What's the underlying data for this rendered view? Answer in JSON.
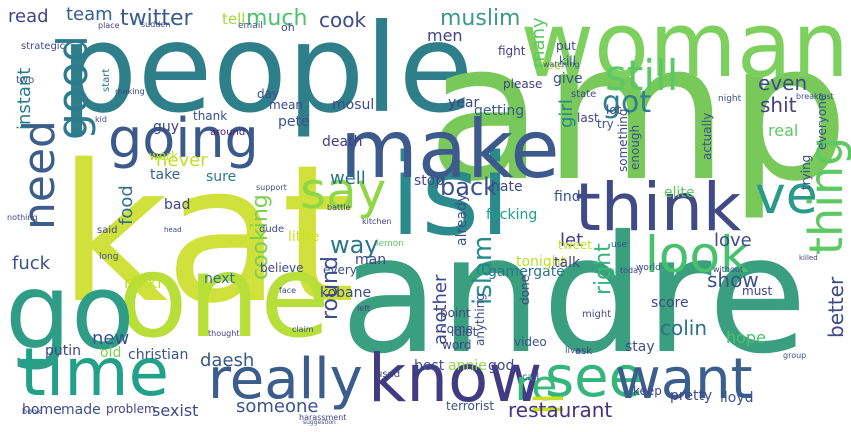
{
  "words": [
    {
      "text": "people",
      "color": "#2e7f8a"
    },
    {
      "text": "kat",
      "color": "#cfe13a"
    },
    {
      "text": "amp",
      "color": "#78c95a"
    },
    {
      "text": "andre",
      "color": "#3a9f7e"
    },
    {
      "text": "woman",
      "color": "#7dd05e"
    },
    {
      "text": "one",
      "color": "#b8de3a"
    },
    {
      "text": "isi",
      "color": "#2a8a8c"
    },
    {
      "text": "make",
      "color": "#3d5a8c"
    },
    {
      "text": "go",
      "color": "#2f9c86"
    },
    {
      "text": "time",
      "color": "#21a187"
    },
    {
      "text": "know",
      "color": "#433a84"
    },
    {
      "text": "think",
      "color": "#404a87"
    },
    {
      "text": "see",
      "color": "#34b57c"
    },
    {
      "text": "really",
      "color": "#3b5d8c"
    },
    {
      "text": "want",
      "color": "#3a5f8c"
    },
    {
      "text": "going",
      "color": "#3b5a8b"
    },
    {
      "text": "look",
      "color": "#47c16e"
    },
    {
      "text": "still",
      "color": "#5ac864"
    },
    {
      "text": "say",
      "color": "#8fd744"
    },
    {
      "text": "re",
      "color": "#39b97a"
    },
    {
      "text": "ve",
      "color": "#2a9b8a"
    },
    {
      "text": "thing",
      "color": "#5ec962"
    },
    {
      "text": "need",
      "color": "#3b5e8c"
    },
    {
      "text": "good",
      "color": "#2d7b8e"
    },
    {
      "text": "ll",
      "color": "#c8e020"
    },
    {
      "text": "got",
      "color": "#2c7f8e"
    },
    {
      "text": "twitter",
      "color": "#3b5b8b"
    },
    {
      "text": "much",
      "color": "#4cc26c"
    },
    {
      "text": "muslim",
      "color": "#3a9a88"
    },
    {
      "text": "cook",
      "color": "#3e4a89"
    },
    {
      "text": "team",
      "color": "#355f8d"
    },
    {
      "text": "read",
      "color": "#3f4688"
    },
    {
      "text": "tell",
      "color": "#a0da39"
    },
    {
      "text": "men",
      "color": "#414487"
    },
    {
      "text": "back",
      "color": "#3b528b"
    },
    {
      "text": "way",
      "color": "#2a788e"
    },
    {
      "text": "well",
      "color": "#2c728e"
    },
    {
      "text": "never",
      "color": "#c2df23"
    },
    {
      "text": "food",
      "color": "#2e6e8e"
    },
    {
      "text": "show",
      "color": "#3b528b"
    },
    {
      "text": "love",
      "color": "#3e4989"
    },
    {
      "text": "cooking",
      "color": "#7ad151"
    },
    {
      "text": "round",
      "color": "#3e4c8a"
    },
    {
      "text": "islam",
      "color": "#238a8d"
    },
    {
      "text": "restaurant",
      "color": "#46337f"
    },
    {
      "text": "someone",
      "color": "#3a548c"
    },
    {
      "text": "daesh",
      "color": "#38598c"
    },
    {
      "text": "colin",
      "color": "#2c718e"
    },
    {
      "text": "right",
      "color": "#35b779"
    },
    {
      "text": "better",
      "color": "#3e4a89"
    },
    {
      "text": "shit",
      "color": "#433e85"
    },
    {
      "text": "even",
      "color": "#3e4c8a"
    },
    {
      "text": "instant",
      "color": "#287d8e"
    },
    {
      "text": "new",
      "color": "#3a548c"
    },
    {
      "text": "fuck",
      "color": "#3b528b"
    },
    {
      "text": "another",
      "color": "#3f4788"
    },
    {
      "text": "let",
      "color": "#443a83"
    },
    {
      "text": "girl",
      "color": "#25858e"
    },
    {
      "text": "many",
      "color": "#5cc863"
    },
    {
      "text": "nikki",
      "color": "#bddf26"
    },
    {
      "text": "next",
      "color": "#2c728e"
    },
    {
      "text": "fucking",
      "color": "#1f9e89"
    },
    {
      "text": "gamergate",
      "color": "#2b758e"
    },
    {
      "text": "tonight",
      "color": "#bddf26"
    },
    {
      "text": "hope",
      "color": "#4ac16d"
    },
    {
      "text": "little",
      "color": "#d0e11c"
    },
    {
      "text": "bad",
      "color": "#414487"
    },
    {
      "text": "sure",
      "color": "#2a788e"
    },
    {
      "text": "take",
      "color": "#34618d"
    },
    {
      "text": "work",
      "color": "#b5de2b"
    },
    {
      "text": "death",
      "color": "#433e85"
    },
    {
      "text": "year",
      "color": "#3f4788"
    },
    {
      "text": "getting",
      "color": "#38598c"
    },
    {
      "text": "mosul",
      "color": "#3e4a89"
    },
    {
      "text": "pete",
      "color": "#3b528b"
    },
    {
      "text": "mean",
      "color": "#3f4788"
    },
    {
      "text": "thank",
      "color": "#3b528b"
    },
    {
      "text": "guy",
      "color": "#414487"
    },
    {
      "text": "start",
      "color": "#2c728e"
    },
    {
      "text": "day",
      "color": "#3e4a89"
    },
    {
      "text": "around",
      "color": "#482475"
    },
    {
      "text": "give",
      "color": "#3b528b"
    },
    {
      "text": "fight",
      "color": "#433e85"
    },
    {
      "text": "put",
      "color": "#3e4a89"
    },
    {
      "text": "kill",
      "color": "#3b528b"
    },
    {
      "text": "feel",
      "color": "#b5de2b"
    },
    {
      "text": "last",
      "color": "#414487"
    },
    {
      "text": "lot",
      "color": "#3e4989"
    },
    {
      "text": "try",
      "color": "#38598c"
    },
    {
      "text": "please",
      "color": "#414487"
    },
    {
      "text": "find",
      "color": "#3b528b"
    },
    {
      "text": "hate",
      "color": "#3e4989"
    },
    {
      "text": "stop",
      "color": "#3e4989"
    },
    {
      "text": "already",
      "color": "#3b528b"
    },
    {
      "text": "talk",
      "color": "#414487"
    },
    {
      "text": "tweet",
      "color": "#c2df23"
    },
    {
      "text": "real",
      "color": "#5ec962"
    },
    {
      "text": "something",
      "color": "#3e4989"
    },
    {
      "text": "enough",
      "color": "#3b528b"
    },
    {
      "text": "elite",
      "color": "#5ec962"
    },
    {
      "text": "actually",
      "color": "#3b528b"
    },
    {
      "text": "trying",
      "color": "#3e4c8a"
    },
    {
      "text": "everyone",
      "color": "#3b528b"
    },
    {
      "text": "old",
      "color": "#7ad151"
    },
    {
      "text": "christian",
      "color": "#3b528b"
    },
    {
      "text": "putin",
      "color": "#414487"
    },
    {
      "text": "home",
      "color": "#3e4989"
    },
    {
      "text": "made",
      "color": "#3b528b"
    },
    {
      "text": "problem",
      "color": "#414487"
    },
    {
      "text": "sexist",
      "color": "#3e4a89"
    },
    {
      "text": "best",
      "color": "#3b528b"
    },
    {
      "text": "annie",
      "color": "#8fd744"
    },
    {
      "text": "god",
      "color": "#414487"
    },
    {
      "text": "terrorist",
      "color": "#3b528b"
    },
    {
      "text": "kobane",
      "color": "#3e4989"
    },
    {
      "text": "every",
      "color": "#3b528b"
    },
    {
      "text": "man",
      "color": "#414487"
    },
    {
      "text": "point",
      "color": "#3e4a89"
    },
    {
      "text": "come",
      "color": "#3b528b"
    },
    {
      "text": "word",
      "color": "#414487"
    },
    {
      "text": "idiot",
      "color": "#3e4989"
    },
    {
      "text": "anything",
      "color": "#3b528b"
    },
    {
      "text": "done",
      "color": "#414487"
    },
    {
      "text": "score",
      "color": "#3e4a89"
    },
    {
      "text": "stay",
      "color": "#3b528b"
    },
    {
      "text": "keep",
      "color": "#414487"
    },
    {
      "text": "pretty",
      "color": "#3e4989"
    },
    {
      "text": "lloyd",
      "color": "#3b528b"
    },
    {
      "text": "said",
      "color": "#414487"
    },
    {
      "text": "believe",
      "color": "#3e4989"
    },
    {
      "text": "video",
      "color": "#3b528b"
    },
    {
      "text": "must",
      "color": "#414487"
    },
    {
      "text": "strategic",
      "color": "#3e4989"
    },
    {
      "text": "two",
      "color": "#3b528b"
    },
    {
      "text": "place",
      "color": "#414487"
    },
    {
      "text": "sudden",
      "color": "#3e4a89"
    },
    {
      "text": "email",
      "color": "#3b528b"
    },
    {
      "text": "oh",
      "color": "#414487"
    },
    {
      "text": "state",
      "color": "#3e4989"
    },
    {
      "text": "watching",
      "color": "#3b528b"
    },
    {
      "text": "making",
      "color": "#414487"
    },
    {
      "text": "kid",
      "color": "#3e4989"
    },
    {
      "text": "long",
      "color": "#3b528b"
    },
    {
      "text": "nothing",
      "color": "#414487"
    },
    {
      "text": "book",
      "color": "#3e4989"
    },
    {
      "text": "support",
      "color": "#3b528b"
    },
    {
      "text": "lemon",
      "color": "#5ec962"
    },
    {
      "text": "kitchen",
      "color": "#414487"
    },
    {
      "text": "dude",
      "color": "#3e4989"
    },
    {
      "text": "call",
      "color": "#3b528b"
    },
    {
      "text": "ask",
      "color": "#414487"
    },
    {
      "text": "might",
      "color": "#3e4989"
    },
    {
      "text": "live",
      "color": "#3b528b"
    },
    {
      "text": "left",
      "color": "#414487"
    },
    {
      "text": "used",
      "color": "#3e4989"
    },
    {
      "text": "use",
      "color": "#3b528b"
    },
    {
      "text": "today",
      "color": "#414487"
    },
    {
      "text": "world",
      "color": "#3e4989"
    },
    {
      "text": "group",
      "color": "#3b528b"
    },
    {
      "text": "thought",
      "color": "#414487"
    },
    {
      "text": "face",
      "color": "#3e4989"
    },
    {
      "text": "claim",
      "color": "#3b528b"
    },
    {
      "text": "harassment",
      "color": "#414487"
    },
    {
      "text": "suggestion",
      "color": "#3e4989"
    },
    {
      "text": "breakfast",
      "color": "#3b528b"
    },
    {
      "text": "killed",
      "color": "#414487"
    },
    {
      "text": "without",
      "color": "#3e4989"
    },
    {
      "text": "night",
      "color": "#3b528b"
    },
    {
      "text": "battle",
      "color": "#414487"
    },
    {
      "text": "head",
      "color": "#3e4989"
    }
  ]
}
